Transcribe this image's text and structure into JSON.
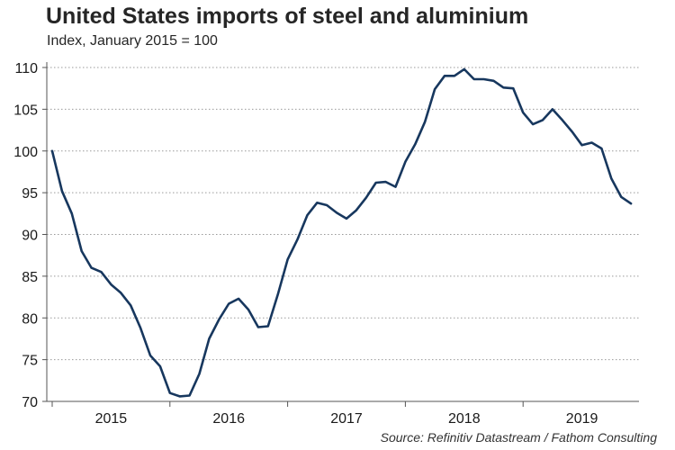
{
  "chart_data": {
    "type": "line",
    "title": "United States imports of steel and aluminium",
    "subtitle": "Index, January 2015 = 100",
    "source": "Source: Refinitiv Datastream / Fathom Consulting",
    "xlabel": "",
    "ylabel": "",
    "ylim": [
      70,
      110
    ],
    "yticks": [
      "70",
      "75",
      "80",
      "85",
      "90",
      "95",
      "100",
      "105",
      "110"
    ],
    "xticks": [
      "2015",
      "2016",
      "2017",
      "2018",
      "2019"
    ],
    "grid": "horizontal dotted",
    "line_color": "#17375e",
    "series": [
      {
        "name": "United States imports of steel and aluminium",
        "start": "2015-01",
        "values": [
          100,
          95.2,
          92.5,
          88.0,
          86.0,
          85.5,
          84.0,
          83.0,
          81.5,
          78.8,
          75.5,
          74.2,
          71.0,
          70.6,
          70.7,
          73.3,
          77.5,
          79.8,
          81.7,
          82.3,
          81.0,
          78.9,
          79.0,
          82.8,
          87.0,
          89.4,
          92.3,
          93.8,
          93.5,
          92.6,
          91.9,
          92.9,
          94.4,
          96.2,
          96.3,
          95.7,
          98.7,
          100.8,
          103.5,
          107.4,
          109.0,
          109.0,
          109.8,
          108.6,
          108.6,
          108.4,
          107.6,
          107.5,
          104.6,
          103.2,
          103.7,
          105.0,
          103.7,
          102.3,
          100.7,
          101.0,
          100.3,
          96.7,
          94.5,
          93.7
        ]
      }
    ]
  }
}
